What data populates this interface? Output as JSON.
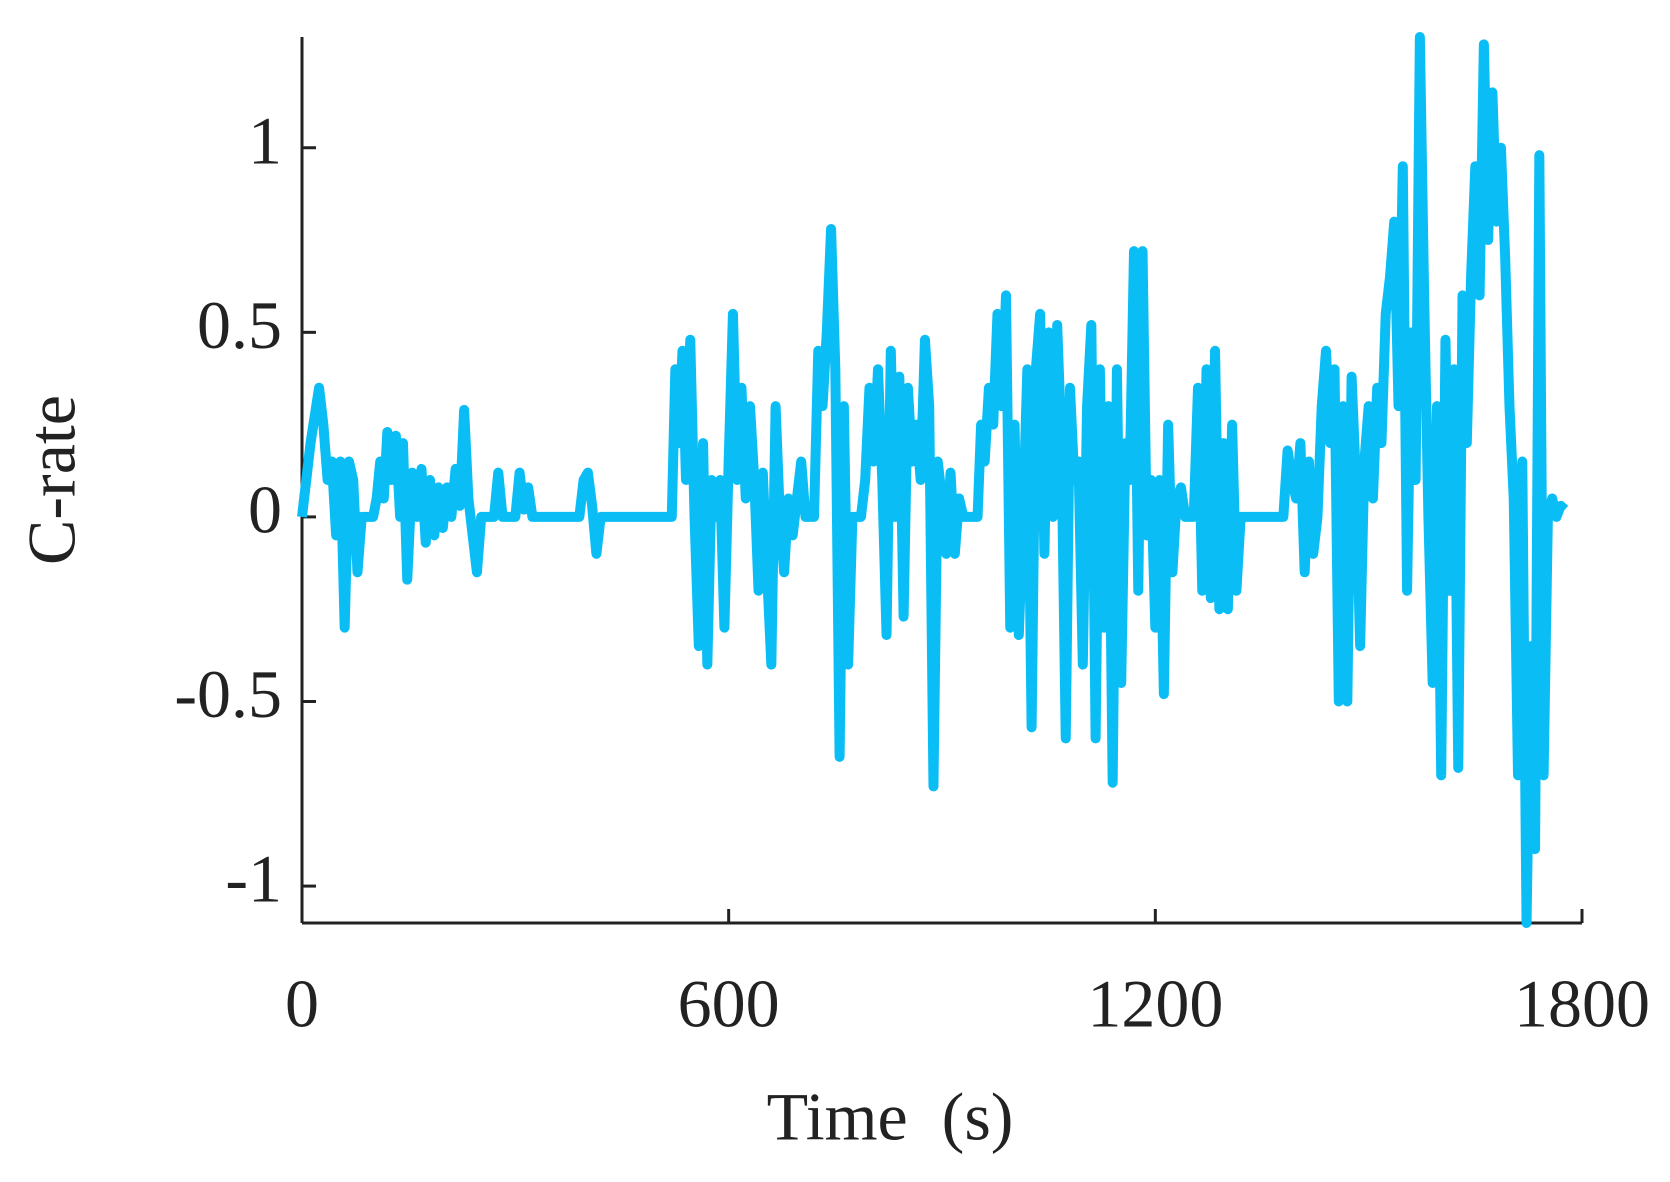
{
  "chart_data": {
    "type": "line",
    "xlabel": "Time  (s)",
    "ylabel": "C-rate",
    "xlim": [
      0,
      1800
    ],
    "xticks": [
      0,
      600,
      1200,
      1800
    ],
    "ylim": [
      -1.1,
      1.3
    ],
    "yticks": [
      -1,
      -0.5,
      0,
      0.5,
      1
    ],
    "series": [
      {
        "color": "#0abef5",
        "x": [
          0,
          12,
          24,
          30,
          36,
          42,
          48,
          54,
          60,
          66,
          72,
          78,
          84,
          100,
          105,
          110,
          115,
          120,
          126,
          132,
          138,
          142,
          148,
          155,
          162,
          168,
          174,
          180,
          186,
          192,
          198,
          204,
          210,
          216,
          222,
          228,
          234,
          240,
          246,
          252,
          270,
          276,
          282,
          300,
          306,
          312,
          318,
          324,
          390,
          396,
          402,
          408,
          414,
          420,
          520,
          525,
          530,
          535,
          540,
          546,
          552,
          558,
          564,
          570,
          576,
          582,
          588,
          594,
          600,
          606,
          612,
          618,
          624,
          630,
          636,
          642,
          648,
          654,
          660,
          666,
          672,
          678,
          684,
          690,
          696,
          702,
          708,
          720,
          726,
          732,
          738,
          744,
          750,
          756,
          762,
          768,
          774,
          786,
          792,
          798,
          804,
          810,
          816,
          822,
          828,
          834,
          840,
          846,
          852,
          858,
          864,
          870,
          876,
          882,
          888,
          894,
          900,
          906,
          912,
          918,
          924,
          930,
          950,
          955,
          960,
          966,
          972,
          978,
          984,
          990,
          996,
          1002,
          1008,
          1014,
          1020,
          1026,
          1032,
          1038,
          1044,
          1050,
          1056,
          1062,
          1068,
          1074,
          1080,
          1086,
          1092,
          1098,
          1104,
          1110,
          1116,
          1122,
          1128,
          1134,
          1140,
          1146,
          1152,
          1158,
          1164,
          1170,
          1176,
          1182,
          1188,
          1194,
          1200,
          1206,
          1212,
          1218,
          1224,
          1230,
          1236,
          1242,
          1254,
          1260,
          1266,
          1272,
          1278,
          1284,
          1290,
          1296,
          1302,
          1308,
          1314,
          1320,
          1380,
          1386,
          1392,
          1398,
          1404,
          1410,
          1416,
          1422,
          1428,
          1434,
          1440,
          1446,
          1452,
          1458,
          1464,
          1470,
          1476,
          1482,
          1488,
          1494,
          1500,
          1506,
          1512,
          1518,
          1524,
          1530,
          1536,
          1542,
          1548,
          1554,
          1560,
          1566,
          1572,
          1578,
          1584,
          1590,
          1596,
          1602,
          1608,
          1614,
          1620,
          1626,
          1632,
          1638,
          1644,
          1650,
          1656,
          1662,
          1668,
          1674,
          1680,
          1686,
          1692,
          1698,
          1704,
          1710,
          1716,
          1722,
          1728,
          1734,
          1740,
          1746,
          1752,
          1758,
          1764,
          1770,
          1776
        ],
        "values": [
          0,
          0.2,
          0.35,
          0.25,
          0.1,
          0.15,
          -0.05,
          0.15,
          -0.3,
          0.15,
          0.1,
          -0.15,
          0,
          0,
          0.05,
          0.15,
          0.05,
          0.23,
          0.1,
          0.22,
          0,
          0.2,
          -0.17,
          0.12,
          0,
          0.13,
          -0.07,
          0.1,
          -0.05,
          0.08,
          -0.03,
          0.08,
          0,
          0.13,
          0.03,
          0.29,
          0.05,
          -0.05,
          -0.15,
          0,
          0,
          0.12,
          0,
          0,
          0.12,
          0.02,
          0.08,
          0,
          0,
          0.1,
          0.12,
          0.03,
          -0.1,
          0,
          0,
          0.4,
          0.2,
          0.45,
          0.1,
          0.48,
          0,
          -0.35,
          0.2,
          -0.4,
          0.1,
          0,
          0.1,
          -0.3,
          0.15,
          0.55,
          0.1,
          0.35,
          0.05,
          0.3,
          0.1,
          -0.2,
          0.12,
          -0.15,
          -0.4,
          0.3,
          0,
          -0.15,
          0.05,
          -0.05,
          0.05,
          0.15,
          0,
          0,
          0.45,
          0.3,
          0.5,
          0.78,
          0.4,
          -0.65,
          0.3,
          -0.4,
          0,
          0,
          0.1,
          0.35,
          0.15,
          0.4,
          0.1,
          -0.32,
          0.45,
          0,
          0.38,
          -0.27,
          0.35,
          0.15,
          0.25,
          0.1,
          0.48,
          0.3,
          -0.73,
          0.15,
          0.05,
          -0.1,
          0.12,
          -0.1,
          0.05,
          0,
          0,
          0.25,
          0.15,
          0.35,
          0.25,
          0.55,
          0.3,
          0.6,
          -0.3,
          0.25,
          -0.32,
          0,
          0.4,
          -0.57,
          0.4,
          0.55,
          -0.1,
          0.5,
          0,
          0.52,
          0.2,
          -0.6,
          0.35,
          0.1,
          0.15,
          -0.4,
          0.3,
          0.52,
          -0.6,
          0.4,
          -0.3,
          0.3,
          -0.72,
          0.4,
          -0.45,
          0.2,
          0.1,
          0.72,
          -0.2,
          0.72,
          -0.05,
          0.1,
          -0.3,
          0.1,
          -0.48,
          0.25,
          -0.15,
          0.05,
          0.08,
          0,
          0,
          0.35,
          -0.2,
          0.4,
          -0.22,
          0.45,
          -0.25,
          0.2,
          -0.25,
          0.25,
          -0.2,
          0,
          0,
          0.18,
          0.1,
          0.05,
          0.2,
          -0.15,
          0.15,
          -0.1,
          0,
          0.3,
          0.45,
          0.2,
          0.4,
          -0.5,
          0.3,
          -0.5,
          0.38,
          0.1,
          -0.35,
          0.15,
          0.3,
          0.05,
          0.35,
          0.2,
          0.55,
          0.65,
          0.8,
          0.3,
          0.95,
          -0.2,
          0.5,
          0.1,
          1.3,
          0.6,
          0,
          -0.45,
          0.3,
          -0.7,
          0.48,
          -0.2,
          0.4,
          -0.68,
          0.6,
          0.2,
          0.65,
          0.95,
          0.6,
          1.28,
          0.75,
          1.15,
          0.8,
          1,
          0.7,
          0.3,
          0.05,
          -0.7,
          0.15,
          -1.1,
          -0.35,
          -0.9,
          0.98,
          -0.7,
          0,
          0.05,
          0,
          0.03,
          0.02
        ]
      }
    ]
  }
}
